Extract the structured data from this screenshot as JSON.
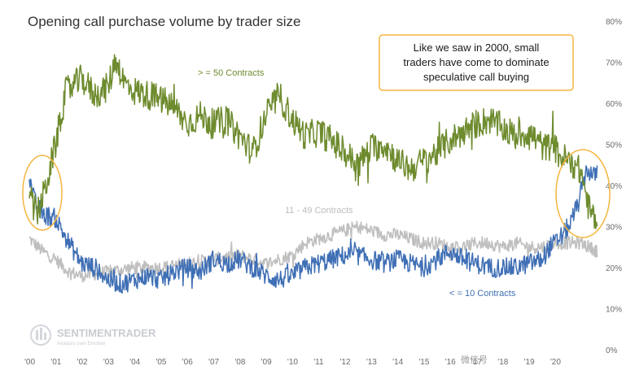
{
  "chart_data": {
    "type": "line",
    "title": "Opening call purchase volume by trader size",
    "x_tick_labels": [
      "'00",
      "'01",
      "'02",
      "'03",
      "'04",
      "'05",
      "'06",
      "'07",
      "'08",
      "'09",
      "'10",
      "'11",
      "'12",
      "'13",
      "'14",
      "'15",
      "'16",
      "'17",
      "'18",
      "'19",
      "'20"
    ],
    "y_tick_labels": [
      "0%",
      "10%",
      "20%",
      "30%",
      "40%",
      "50%",
      "60%",
      "70%",
      "80%"
    ],
    "ylim": [
      0,
      80
    ],
    "y_axis_side": "right",
    "grid": false,
    "series": [
      {
        "name": ">= 50 Contracts",
        "color": "#6e8b2e",
        "x": [
          2000.0,
          2000.3,
          2000.6,
          2001.0,
          2001.4,
          2002.0,
          2002.5,
          2003.0,
          2003.3,
          2003.6,
          2004.0,
          2004.5,
          2005.0,
          2005.5,
          2006.0,
          2006.5,
          2007.0,
          2007.5,
          2008.0,
          2008.5,
          2009.0,
          2009.5,
          2010.0,
          2010.5,
          2011.0,
          2011.5,
          2012.0,
          2012.5,
          2013.0,
          2013.5,
          2014.0,
          2014.5,
          2015.0,
          2015.5,
          2016.0,
          2016.5,
          2017.0,
          2017.5,
          2018.0,
          2018.5,
          2019.0,
          2019.3,
          2019.6,
          2019.9,
          2020.2,
          2020.6,
          2021.0,
          2021.3,
          2021.6
        ],
        "y": [
          37,
          33,
          39,
          50,
          63,
          66,
          62,
          64,
          71,
          65,
          63,
          62,
          61,
          59,
          55,
          57,
          55,
          56,
          52,
          48,
          57,
          62,
          56,
          52,
          53,
          51,
          48,
          45,
          49,
          50,
          46,
          44,
          46,
          48,
          51,
          53,
          55,
          56,
          54,
          52,
          53,
          51,
          49,
          50,
          47,
          46,
          43,
          34,
          31
        ]
      },
      {
        "name": "11 - 49 Contracts",
        "color": "#bfbfbf",
        "x": [
          2000.0,
          2000.5,
          2001.0,
          2001.5,
          2002.0,
          2003.0,
          2004.0,
          2005.0,
          2006.0,
          2007.0,
          2008.0,
          2009.0,
          2010.0,
          2010.5,
          2011.0,
          2011.5,
          2012.0,
          2012.5,
          2013.0,
          2013.5,
          2014.0,
          2014.5,
          2015.0,
          2015.5,
          2016.0,
          2016.5,
          2017.0,
          2017.5,
          2018.0,
          2018.5,
          2019.0,
          2019.5,
          2020.0,
          2020.5,
          2021.0,
          2021.6
        ],
        "y": [
          27,
          24,
          22,
          19,
          18,
          19,
          20,
          20,
          21,
          22,
          23,
          21,
          23,
          26,
          27,
          28,
          29,
          30,
          29,
          28,
          28,
          27,
          26,
          26,
          25,
          25,
          26,
          26,
          25,
          26,
          25,
          25,
          26,
          26,
          26,
          24
        ]
      },
      {
        "name": "<= 10 Contracts",
        "color": "#3f6fb5",
        "x": [
          2000.0,
          2000.2,
          2000.5,
          2001.0,
          2001.5,
          2002.0,
          2002.5,
          2003.0,
          2003.5,
          2004.0,
          2004.5,
          2005.0,
          2005.5,
          2006.0,
          2006.5,
          2007.0,
          2007.5,
          2008.0,
          2008.5,
          2009.0,
          2009.5,
          2010.0,
          2010.5,
          2011.0,
          2011.5,
          2012.0,
          2012.5,
          2013.0,
          2013.5,
          2014.0,
          2014.5,
          2015.0,
          2015.5,
          2016.0,
          2016.5,
          2017.0,
          2017.5,
          2018.0,
          2018.5,
          2019.0,
          2019.5,
          2019.8,
          2020.0,
          2020.3,
          2020.6,
          2020.9,
          2021.2,
          2021.5,
          2021.6
        ],
        "y": [
          42,
          36,
          33,
          32,
          26,
          21,
          20,
          17,
          16,
          17,
          18,
          17,
          19,
          20,
          19,
          22,
          21,
          22,
          20,
          18,
          17,
          18,
          20,
          21,
          22,
          23,
          23,
          22,
          21,
          22,
          21,
          20,
          22,
          24,
          22,
          21,
          20,
          20,
          20,
          21,
          22,
          25,
          26,
          28,
          31,
          36,
          44,
          42,
          44
        ]
      }
    ],
    "annotations": [
      {
        "text": "Like we saw in 2000, small traders have come to dominate speculative call buying",
        "box_color": "#f5b640"
      }
    ]
  },
  "text": {
    "title": "Opening call purchase volume by trader size",
    "series_label_large": "> = 50 Contracts",
    "series_label_mid": "11 - 49 Contracts",
    "series_label_small": "< = 10 Contracts",
    "annotation_line_1": "Like we saw in 2000, small",
    "annotation_line_2": "traders have come to dominate",
    "annotation_line_3": "speculative call buying",
    "watermark_name": "SENTIMENTRADER",
    "watermark_tagline": "Analysis over Emotion",
    "source_watermark": "微信号"
  },
  "colors": {
    "large": "#6e8b2e",
    "mid": "#bfbfbf",
    "small": "#3f6fb5",
    "highlight": "#f5b640",
    "watermark": "#c8ccd2"
  }
}
